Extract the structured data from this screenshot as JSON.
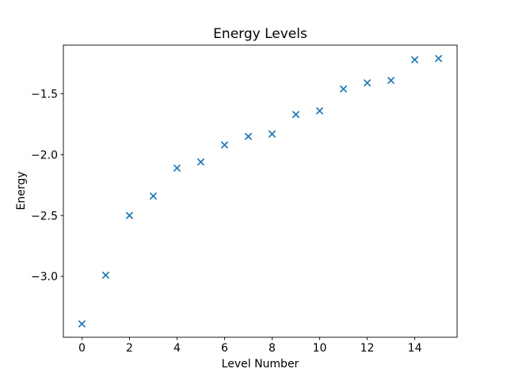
{
  "chart_data": {
    "type": "scatter",
    "title": "Energy Levels",
    "xlabel": "Level Number",
    "ylabel": "Energy",
    "x": [
      0,
      1,
      2,
      3,
      4,
      5,
      6,
      7,
      8,
      9,
      10,
      11,
      12,
      13,
      14,
      15
    ],
    "y": [
      -3.39,
      -2.99,
      -2.5,
      -2.34,
      -2.11,
      -2.06,
      -1.92,
      -1.85,
      -1.83,
      -1.67,
      -1.64,
      -1.46,
      -1.41,
      -1.39,
      -1.22,
      -1.21
    ],
    "xlim": [
      -0.78,
      15.78
    ],
    "ylim": [
      -3.5,
      -1.1
    ],
    "xticks": [
      0,
      2,
      4,
      6,
      8,
      10,
      12,
      14
    ],
    "xtick_labels": [
      "0",
      "2",
      "4",
      "6",
      "8",
      "10",
      "12",
      "14"
    ],
    "yticks": [
      -1.5,
      -2.0,
      -2.5,
      -3.0
    ],
    "ytick_labels": [
      "−1.5",
      "−2.0",
      "−2.5",
      "−3.0"
    ],
    "marker": "x",
    "marker_color": "#1f77b4",
    "axis_color": "#000000",
    "background_color": "#ffffff",
    "grid": false,
    "legend": null
  }
}
